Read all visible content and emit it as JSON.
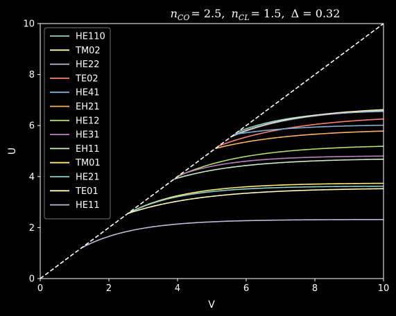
{
  "title_parts": {
    "n_co_sym": "n",
    "n_co_sub": "CO",
    "n_co_val": "= 2.5,",
    "n_cl_sym": "n",
    "n_cl_sub": "CL",
    "n_cl_val": "= 1.5,",
    "delta": "Δ = 0.32"
  },
  "chart_data": {
    "type": "line",
    "title": "n_CO = 2.5, n_CL = 1.5, Δ = 0.32",
    "xlabel": "V",
    "ylabel": "U",
    "xlim": [
      0,
      10
    ],
    "ylim": [
      0,
      10
    ],
    "xticks": [
      "0",
      "2",
      "4",
      "6",
      "8",
      "10"
    ],
    "yticks": [
      "0",
      "2",
      "4",
      "6",
      "8",
      "10"
    ],
    "grid": false,
    "legend_position": "top-left",
    "background": "#000000",
    "reference_line": {
      "x": [
        0,
        10
      ],
      "y": [
        0,
        10
      ],
      "style": "dashed",
      "color": "#ffffff"
    },
    "series": [
      {
        "name": "HE110",
        "color": "#8dd3c7",
        "start": 5.75,
        "end": 6.62,
        "k": 0.62
      },
      {
        "name": "TM02",
        "color": "#feffb3",
        "start": 5.6,
        "end": 6.75,
        "k": 0.5
      },
      {
        "name": "HE22",
        "color": "#bfbbd9",
        "start": 5.55,
        "end": 6.7,
        "k": 0.52
      },
      {
        "name": "TE02",
        "color": "#fa8174",
        "start": 5.2,
        "end": 6.42,
        "k": 0.42
      },
      {
        "name": "HE41",
        "color": "#81b1d2",
        "start": 5.65,
        "end": 6.05,
        "k": 0.55
      },
      {
        "name": "EH21",
        "color": "#fdb462",
        "start": 5.1,
        "end": 5.87,
        "k": 0.45
      },
      {
        "name": "HE12",
        "color": "#b3de69",
        "start": 4.0,
        "end": 5.25,
        "k": 0.5
      },
      {
        "name": "HE31",
        "color": "#bc82bd",
        "start": 4.05,
        "end": 4.82,
        "k": 0.65
      },
      {
        "name": "EH11",
        "color": "#ccebc4",
        "start": 3.9,
        "end": 4.72,
        "k": 0.5
      },
      {
        "name": "TM01",
        "color": "#ffed6f",
        "start": 2.55,
        "end": 3.75,
        "k": 0.6
      },
      {
        "name": "HE21",
        "color": "#8dd3c7",
        "start": 2.55,
        "end": 3.63,
        "k": 0.65
      },
      {
        "name": "TE01",
        "color": "#feffb3",
        "start": 2.55,
        "end": 3.56,
        "k": 0.45
      },
      {
        "name": "HE11",
        "color": "#bfbbd9",
        "start": 1.2,
        "end": 2.32,
        "k": 0.65
      }
    ]
  }
}
